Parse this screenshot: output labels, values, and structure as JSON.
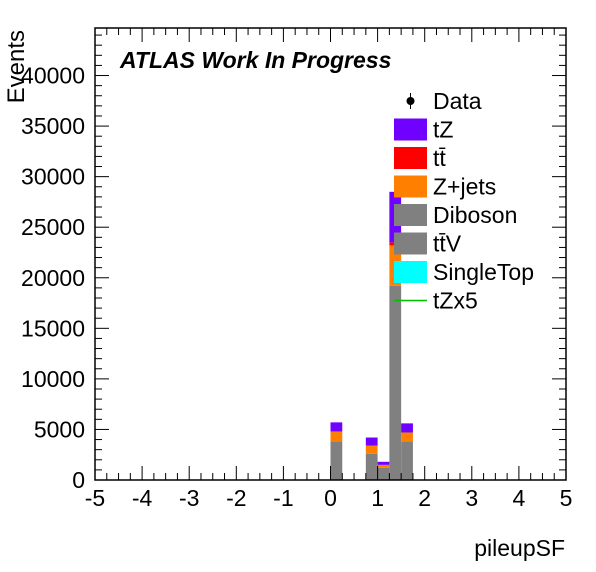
{
  "chart_data": {
    "type": "bar",
    "stacked": true,
    "title": "",
    "annotation": "ATLAS Work In Progress",
    "xlabel": "pileupSF",
    "ylabel": "Events",
    "xlim": [
      -5,
      5
    ],
    "ylim": [
      0,
      44700
    ],
    "x_ticks": [
      "-5",
      "-4",
      "-3",
      "-2",
      "-1",
      "0",
      "1",
      "2",
      "3",
      "4",
      "5"
    ],
    "y_ticks": [
      "0",
      "5000",
      "10000",
      "15000",
      "20000",
      "25000",
      "30000",
      "35000",
      "40000"
    ],
    "bin_width": 0.25,
    "bins": [
      {
        "x0": 0.0,
        "x1": 0.25
      },
      {
        "x0": 0.75,
        "x1": 1.0
      },
      {
        "x0": 1.0,
        "x1": 1.25
      },
      {
        "x0": 1.25,
        "x1": 1.5
      },
      {
        "x0": 1.5,
        "x1": 1.75
      }
    ],
    "series": [
      {
        "name": "Diboson",
        "color": "#808080",
        "values": [
          3800,
          2600,
          1200,
          19200,
          3800
        ]
      },
      {
        "name": "tt̄V",
        "color": "#808080",
        "values": [
          0,
          0,
          0,
          0,
          0
        ]
      },
      {
        "name": "SingleTop",
        "color": "#00ffff",
        "values": [
          0,
          0,
          0,
          0,
          0
        ]
      },
      {
        "name": "Z+jets",
        "color": "#ff8000",
        "values": [
          1000,
          800,
          300,
          4000,
          900
        ]
      },
      {
        "name": "tt̄",
        "color": "#ff0000",
        "values": [
          0,
          0,
          0,
          300,
          0
        ]
      },
      {
        "name": "tZ",
        "color": "#7000ff",
        "values": [
          900,
          800,
          300,
          5000,
          900
        ]
      }
    ],
    "overlay": {
      "name": "tZx5",
      "color": "#00c000",
      "values": [
        0,
        0,
        0,
        0,
        0
      ]
    },
    "legend": {
      "placement": "top-right",
      "entries": [
        {
          "label": "Data",
          "kind": "marker",
          "color": "#000000"
        },
        {
          "label": "tZ",
          "kind": "box",
          "color": "#7000ff"
        },
        {
          "label": "tt̄",
          "kind": "box",
          "color": "#ff0000"
        },
        {
          "label": "Z+jets",
          "kind": "box",
          "color": "#ff8000"
        },
        {
          "label": "Diboson",
          "kind": "box",
          "color": "#808080"
        },
        {
          "label": "tt̄V",
          "kind": "box",
          "color": "#808080"
        },
        {
          "label": "SingleTop",
          "kind": "box",
          "color": "#00ffff"
        },
        {
          "label": "tZx5",
          "kind": "line",
          "color": "#00c000"
        }
      ]
    },
    "grid": false
  }
}
